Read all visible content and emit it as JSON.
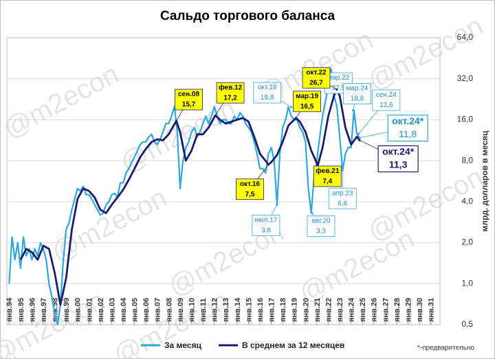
{
  "chart_data": {
    "type": "line",
    "title": "Сальдо торгового баланса",
    "y_label": "млрд. долларов в месяц",
    "footnote": "*-предварительно",
    "watermark": "@m2econ",
    "log_scale": true,
    "grid": true,
    "xlim": [
      1993.8,
      2031.8
    ],
    "xticks": [
      {
        "value": 1994,
        "label": "янв.94"
      },
      {
        "value": 1995,
        "label": "янв.95"
      },
      {
        "value": 1996,
        "label": "янв.96"
      },
      {
        "value": 1997,
        "label": "янв.97"
      },
      {
        "value": 1998,
        "label": "янв.98"
      },
      {
        "value": 1999,
        "label": "янв.99"
      },
      {
        "value": 2000,
        "label": "янв.00"
      },
      {
        "value": 2001,
        "label": "янв.01"
      },
      {
        "value": 2002,
        "label": "янв.02"
      },
      {
        "value": 2003,
        "label": "янв.03"
      },
      {
        "value": 2004,
        "label": "янв.04"
      },
      {
        "value": 2005,
        "label": "янв.05"
      },
      {
        "value": 2006,
        "label": "янв.06"
      },
      {
        "value": 2007,
        "label": "янв.07"
      },
      {
        "value": 2008,
        "label": "янв.08"
      },
      {
        "value": 2009,
        "label": "янв.09"
      },
      {
        "value": 2010,
        "label": "янв.10"
      },
      {
        "value": 2011,
        "label": "янв.11"
      },
      {
        "value": 2012,
        "label": "янв.12"
      },
      {
        "value": 2013,
        "label": "янв.13"
      },
      {
        "value": 2014,
        "label": "янв.14"
      },
      {
        "value": 2015,
        "label": "янв.15"
      },
      {
        "value": 2016,
        "label": "янв.16"
      },
      {
        "value": 2017,
        "label": "янв.17"
      },
      {
        "value": 2018,
        "label": "янв.18"
      },
      {
        "value": 2019,
        "label": "янв.19"
      },
      {
        "value": 2020,
        "label": "янв.20"
      },
      {
        "value": 2021,
        "label": "янв.21"
      },
      {
        "value": 2022,
        "label": "янв.22"
      },
      {
        "value": 2023,
        "label": "янв.23"
      },
      {
        "value": 2024,
        "label": "янв.24"
      },
      {
        "value": 2025,
        "label": "янв.25"
      },
      {
        "value": 2026,
        "label": "янв.26"
      },
      {
        "value": 2027,
        "label": "янв.27"
      },
      {
        "value": 2028,
        "label": "янв.28"
      },
      {
        "value": 2029,
        "label": "янв.29"
      },
      {
        "value": 2030,
        "label": "янв.30"
      },
      {
        "value": 2031,
        "label": "янв.31"
      }
    ],
    "ylim": [
      0.5,
      64
    ],
    "yticks": [
      {
        "value": 0.5,
        "label": "0,5"
      },
      {
        "value": 1,
        "label": "1,0"
      },
      {
        "value": 2,
        "label": "2,0"
      },
      {
        "value": 4,
        "label": "4,0"
      },
      {
        "value": 8,
        "label": "8,0"
      },
      {
        "value": 16,
        "label": "16,0"
      },
      {
        "value": 32,
        "label": "32,0"
      },
      {
        "value": 64,
        "label": "64,0"
      }
    ],
    "series": [
      {
        "name": "За месяц",
        "color": "#29a8e0",
        "x": [
          1994,
          1994.25,
          1994.5,
          1994.75,
          1995,
          1995.25,
          1995.5,
          1995.75,
          1996,
          1996.25,
          1996.5,
          1996.75,
          1997,
          1997.25,
          1997.5,
          1997.75,
          1998,
          1998.25,
          1998.5,
          1998.75,
          1999,
          1999.25,
          1999.5,
          1999.75,
          2000,
          2000.25,
          2000.5,
          2000.75,
          2001,
          2001.25,
          2001.5,
          2001.75,
          2002,
          2002.25,
          2002.5,
          2002.75,
          2003,
          2003.25,
          2003.5,
          2003.75,
          2004,
          2004.25,
          2004.5,
          2004.75,
          2005,
          2005.25,
          2005.5,
          2005.75,
          2006,
          2006.25,
          2006.5,
          2006.75,
          2007,
          2007.25,
          2007.5,
          2007.75,
          2008,
          2008.25,
          2008.5,
          2008.75,
          2009,
          2009.25,
          2009.5,
          2009.75,
          2010,
          2010.25,
          2010.5,
          2010.75,
          2011,
          2011.25,
          2011.5,
          2011.75,
          2012,
          2012.25,
          2012.5,
          2012.75,
          2013,
          2013.25,
          2013.5,
          2013.75,
          2014,
          2014.25,
          2014.5,
          2014.75,
          2015,
          2015.25,
          2015.5,
          2015.75,
          2016,
          2016.25,
          2016.5,
          2016.75,
          2017,
          2017.25,
          2017.5,
          2017.75,
          2018,
          2018.25,
          2018.5,
          2018.75,
          2019,
          2019.25,
          2019.5,
          2019.75,
          2020,
          2020.25,
          2020.5,
          2020.75,
          2021,
          2021.25,
          2021.5,
          2021.75,
          2022,
          2022.25,
          2022.5,
          2022.75,
          2023,
          2023.25,
          2023.5,
          2023.75,
          2024,
          2024.25,
          2024.5,
          2024.75
        ],
        "values": [
          1.0,
          2.2,
          1.5,
          2.0,
          1.3,
          2.2,
          1.6,
          1.8,
          1.5,
          1.8,
          1.6,
          2.0,
          1.8,
          1.5,
          1.0,
          0.8,
          0.6,
          0.5,
          0.7,
          1.5,
          2.5,
          2.8,
          3.5,
          4.2,
          5.0,
          4.8,
          5.2,
          4.5,
          4.5,
          4.2,
          3.8,
          3.5,
          3.2,
          3.3,
          3.8,
          4.0,
          4.5,
          4.6,
          4.3,
          5.5,
          5.5,
          6.5,
          7.0,
          7.8,
          8.5,
          9.5,
          10.5,
          11,
          11,
          12,
          12.5,
          11,
          10.5,
          11.5,
          13,
          15,
          15,
          17,
          20,
          13,
          5,
          8,
          10,
          11,
          13,
          14,
          12,
          13,
          15,
          17,
          15,
          17,
          20,
          17,
          15,
          16,
          16,
          15,
          15,
          17,
          16,
          18,
          17,
          15,
          14,
          13,
          11,
          9,
          7,
          7,
          6.5,
          9,
          10,
          8,
          3.8,
          9,
          14,
          16,
          19.8,
          17,
          16,
          16,
          14,
          13,
          11,
          5,
          3.3,
          6,
          8,
          12,
          17,
          22,
          28,
          37.5,
          24,
          20,
          12,
          6.8,
          9,
          10,
          10,
          18.8,
          12.6,
          11.8
        ],
        "annotations": [
          {
            "label": "окт.18",
            "x": 2018.75,
            "value": 19.8,
            "value_label": "19,8"
          },
          {
            "label": "июл.17",
            "x": 2017.5,
            "value": 3.8,
            "value_label": "3,8"
          },
          {
            "label": "авг.20",
            "x": 2020.58,
            "value": 3.3,
            "value_label": "3,3"
          },
          {
            "label": "мар.22",
            "x": 2022.17,
            "value": 37.5,
            "value_label": "37,5"
          },
          {
            "label": "апр.23",
            "x": 2023.25,
            "value": 6.8,
            "value_label": "6,8"
          },
          {
            "label": "мар.24",
            "x": 2024.17,
            "value": 18.8,
            "value_label": "18,8"
          },
          {
            "label": "сен.24",
            "x": 2024.67,
            "value": 12.6,
            "value_label": "12,6"
          },
          {
            "label": "окт.24*",
            "x": 2024.75,
            "value": 11.8,
            "value_label": "11,8"
          }
        ]
      },
      {
        "name": "В среднем за 12 месяцев",
        "color": "#1a1a6e",
        "x": [
          1995,
          1995.5,
          1996,
          1996.5,
          1997,
          1997.5,
          1998,
          1998.5,
          1999,
          1999.5,
          2000,
          2000.5,
          2001,
          2001.5,
          2002,
          2002.5,
          2003,
          2003.5,
          2004,
          2004.5,
          2005,
          2005.5,
          2006,
          2006.5,
          2007,
          2007.5,
          2008,
          2008.67,
          2009,
          2009.5,
          2010,
          2010.5,
          2011,
          2011.5,
          2012.08,
          2012.5,
          2013,
          2013.5,
          2014,
          2014.5,
          2015,
          2015.5,
          2016,
          2016.75,
          2017,
          2017.5,
          2018,
          2018.5,
          2019.17,
          2019.5,
          2020,
          2020.5,
          2021.08,
          2021.5,
          2022,
          2022.5,
          2022.75,
          2023,
          2023.5,
          2024,
          2024.5,
          2024.75
        ],
        "values": [
          1.5,
          1.8,
          1.7,
          1.5,
          1.9,
          1.8,
          1.2,
          0.7,
          1.1,
          2.5,
          4.2,
          5.0,
          4.8,
          4.3,
          3.5,
          3.3,
          3.8,
          4.3,
          4.9,
          5.8,
          7.0,
          8.5,
          9.8,
          11,
          11.5,
          11.3,
          12.5,
          15.7,
          13,
          8.0,
          9.5,
          12.5,
          12.5,
          14,
          17.2,
          16,
          15,
          15.5,
          16,
          16.5,
          15.5,
          12,
          9.0,
          7.5,
          7.8,
          8.8,
          11,
          14.5,
          16.5,
          15.5,
          13,
          9.5,
          7.4,
          10,
          17,
          24,
          26.7,
          24,
          14,
          10.5,
          12,
          11.3
        ],
        "annotations": [
          {
            "label": "сен.08",
            "x": 2008.67,
            "value": 15.7,
            "value_label": "15,7"
          },
          {
            "label": "фев.12",
            "x": 2012.08,
            "value": 17.2,
            "value_label": "17,2"
          },
          {
            "label": "окт.16",
            "x": 2016.75,
            "value": 7.5,
            "value_label": "7,5"
          },
          {
            "label": "мар.19",
            "x": 2019.17,
            "value": 16.5,
            "value_label": "16,5"
          },
          {
            "label": "фев.21",
            "x": 2021.08,
            "value": 7.4,
            "value_label": "7,4"
          },
          {
            "label": "окт.22",
            "x": 2022.75,
            "value": 26.7,
            "value_label": "26,7"
          },
          {
            "label": "окт.24*",
            "x": 2024.75,
            "value": 11.3,
            "value_label": "11,3"
          }
        ]
      }
    ]
  }
}
